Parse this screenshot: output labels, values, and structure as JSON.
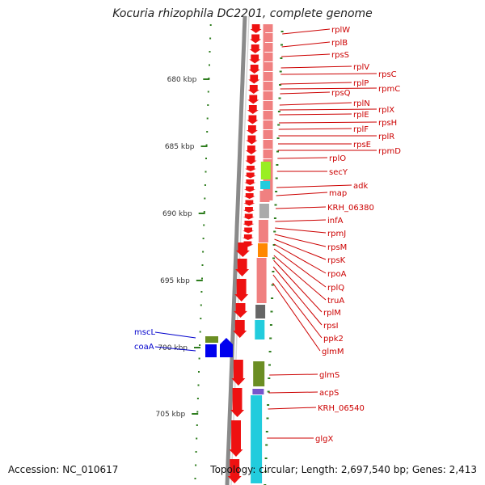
{
  "title": "Kocuria rhizophila DC2201, complete genome",
  "footer": {
    "accession_label": "Accession:",
    "accession": "NC_010617",
    "topology_label": "Topology:",
    "topology": "circular;",
    "length_label": "Length:",
    "length": "2,697,540 bp;",
    "genes_label": "Genes:",
    "genes": "2,413"
  },
  "scale": {
    "unit": "kbp",
    "ticks": [
      "680 kbp",
      "685 kbp",
      "690 kbp",
      "695 kbp",
      "700 kbp",
      "705 kbp"
    ]
  },
  "colors": {
    "gene_red": "#ee1111",
    "label_red": "#cc0000",
    "gene_blue": "#0000ee",
    "label_blue": "#0000cc",
    "tick_green": "#2e7d1e",
    "backbone_gray": "#8a8a8a",
    "pink": "#f08080",
    "lime": "#99ee22",
    "cyan": "#22ccdd",
    "olive": "#6b8e23",
    "orange": "#ff8800",
    "gray": "#aaaaaa",
    "dark_gray": "#666666",
    "purple": "#7755cc"
  },
  "genes_right": [
    "rplW",
    "rplB",
    "rpsS",
    "rplV",
    "rpsC",
    "rplP",
    "rpmC",
    "rpsQ",
    "rplN",
    "rplX",
    "rplE",
    "rpsH",
    "rplF",
    "rplR",
    "rpsE",
    "rpmD",
    "rplO",
    "secY",
    "adk",
    "map",
    "KRH_06380",
    "infA",
    "rpmJ",
    "rpsM",
    "rpsK",
    "rpoA",
    "rplQ",
    "truA",
    "rplM",
    "rpsI",
    "ppk2",
    "glmM",
    "glmS",
    "acpS",
    "KRH_06540",
    "glgX"
  ],
  "genes_left": [
    "mscL",
    "coaA"
  ]
}
